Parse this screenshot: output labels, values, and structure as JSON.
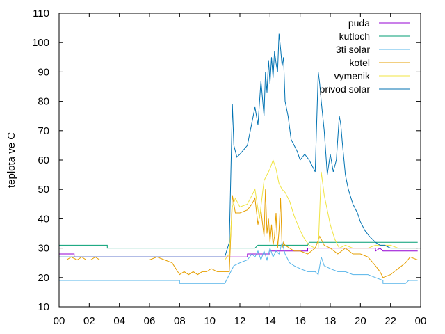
{
  "chart_data": {
    "type": "line",
    "title": "",
    "xlabel": "",
    "ylabel": "teplota ve C",
    "xlim": [
      0,
      24
    ],
    "ylim": [
      10,
      110
    ],
    "x_ticks": [
      "00",
      "02",
      "04",
      "06",
      "08",
      "10",
      "12",
      "14",
      "16",
      "18",
      "20",
      "22",
      "00"
    ],
    "y_ticks": [
      "10",
      "20",
      "30",
      "40",
      "50",
      "60",
      "70",
      "80",
      "90",
      "100",
      "110"
    ],
    "grid": false,
    "legend_position": "top-right",
    "series": [
      {
        "name": "puda",
        "color": "#9400d3",
        "x": [
          0,
          1.0,
          1.0,
          11.0,
          11.0,
          12.5,
          12.5,
          14.0,
          14.0,
          16.5,
          16.5,
          19.0,
          19.0,
          21.0,
          21.0,
          21.3,
          21.5,
          23.8
        ],
        "y": [
          28,
          28,
          27,
          27,
          27,
          27,
          28,
          28,
          29,
          29,
          30,
          30,
          30,
          30,
          29,
          30,
          29,
          29
        ]
      },
      {
        "name": "kutloch",
        "color": "#009e73",
        "x": [
          0,
          3.2,
          3.2,
          11.2,
          12.0,
          13.0,
          13.2,
          16.5,
          16.6,
          21.5,
          21.5,
          23.8
        ],
        "y": [
          31,
          31,
          30,
          30,
          30,
          30,
          31,
          31,
          32,
          32,
          32,
          32
        ]
      },
      {
        "name": "3ti solar",
        "color": "#56b4e9",
        "x": [
          0,
          8.0,
          8.0,
          11.0,
          11.3,
          11.6,
          12.0,
          12.5,
          12.8,
          13.0,
          13.2,
          13.4,
          13.6,
          13.8,
          14.0,
          14.2,
          14.4,
          14.6,
          14.8,
          15.0,
          15.3,
          15.6,
          16.0,
          16.5,
          17.0,
          17.2,
          17.4,
          17.6,
          18.0,
          18.5,
          19.0,
          19.5,
          20.0,
          20.5,
          21.0,
          21.5,
          21.5,
          23.0,
          23.2,
          23.8
        ],
        "y": [
          19,
          19,
          18,
          18,
          21,
          24,
          25,
          26,
          28,
          27,
          29,
          26,
          29,
          26,
          30,
          27,
          29,
          28,
          32,
          28,
          25,
          24,
          23,
          22,
          22,
          21,
          27,
          24,
          23,
          22,
          22,
          21,
          21,
          21,
          20,
          19,
          18,
          18,
          19,
          19
        ]
      },
      {
        "name": "kotel",
        "color": "#e69f00",
        "x": [
          0,
          0.5,
          0.8,
          1.2,
          1.5,
          1.8,
          2.1,
          2.4,
          2.7,
          3.0,
          3.5,
          4.0,
          5.0,
          6.0,
          6.5,
          7.0,
          7.5,
          8.0,
          8.3,
          8.6,
          8.9,
          9.2,
          9.5,
          9.8,
          10.1,
          10.5,
          11.0,
          11.3,
          11.5,
          11.7,
          12.0,
          12.5,
          12.8,
          13.0,
          13.2,
          13.4,
          13.6,
          13.7,
          13.8,
          13.9,
          14.0,
          14.1,
          14.2,
          14.3,
          14.4,
          14.5,
          14.6,
          14.7,
          14.8,
          14.9,
          15.0,
          15.3,
          15.6,
          16.0,
          16.5,
          17.0,
          17.3,
          17.6,
          18.0,
          18.5,
          19.0,
          19.5,
          20.0,
          20.5,
          21.0,
          21.3,
          21.5,
          22.0,
          22.5,
          23.0,
          23.3,
          23.8
        ],
        "y": [
          26,
          26,
          27,
          26,
          27,
          26,
          26,
          27,
          26,
          26,
          26,
          26,
          26,
          26,
          27,
          26,
          25,
          21,
          22,
          21,
          22,
          21,
          22,
          22,
          23,
          22,
          22,
          22,
          48,
          42,
          42,
          43,
          45,
          47,
          38,
          43,
          34,
          50,
          35,
          40,
          32,
          38,
          31,
          34,
          42,
          30,
          36,
          47,
          30,
          32,
          31,
          30,
          29,
          29,
          28,
          30,
          34,
          31,
          30,
          28,
          30,
          28,
          28,
          27,
          24,
          22,
          20,
          21,
          23,
          25,
          27,
          26
        ]
      },
      {
        "name": "vymenik",
        "color": "#f0e442",
        "x": [
          0,
          2.0,
          4.0,
          6.0,
          8.0,
          9.0,
          10.0,
          11.0,
          11.3,
          11.5,
          11.7,
          12.0,
          12.5,
          13.0,
          13.3,
          13.6,
          13.8,
          14.0,
          14.2,
          14.4,
          14.6,
          14.8,
          15.0,
          15.3,
          15.6,
          16.0,
          16.3,
          16.6,
          17.0,
          17.2,
          17.4,
          17.6,
          18.0,
          18.3,
          18.6,
          19.0,
          19.5,
          20.0,
          20.5,
          21.0,
          21.5,
          22.0,
          22.5,
          23.0,
          23.8
        ],
        "y": [
          26,
          26,
          26,
          26,
          26,
          26,
          26,
          26,
          28,
          44,
          47,
          44,
          45,
          50,
          40,
          53,
          55,
          57,
          60,
          57,
          52,
          50,
          49,
          46,
          41,
          36,
          33,
          31,
          30,
          30,
          56,
          48,
          38,
          33,
          30,
          31,
          30,
          30,
          30,
          31,
          31,
          31,
          30,
          30,
          30
        ]
      },
      {
        "name": "privod solar",
        "color": "#0072b2",
        "x": [
          0,
          2.0,
          4.0,
          6.0,
          8.0,
          10.0,
          11.0,
          11.3,
          11.5,
          11.6,
          11.8,
          12.0,
          12.5,
          13.0,
          13.2,
          13.4,
          13.6,
          13.7,
          13.8,
          13.9,
          14.0,
          14.1,
          14.2,
          14.3,
          14.4,
          14.5,
          14.6,
          14.7,
          14.8,
          14.9,
          15.0,
          15.2,
          15.4,
          15.6,
          15.8,
          16.0,
          16.3,
          16.6,
          17.0,
          17.2,
          17.3,
          17.4,
          17.6,
          17.8,
          18.0,
          18.2,
          18.4,
          18.6,
          18.7,
          18.8,
          19.0,
          19.2,
          19.5,
          19.8,
          20.0,
          20.3,
          20.6,
          21.0,
          21.3,
          21.6,
          22.0,
          22.5,
          23.0,
          23.8
        ],
        "y": [
          27,
          27,
          27,
          27,
          27,
          27,
          27,
          32,
          79,
          65,
          61,
          62,
          65,
          78,
          72,
          87,
          75,
          90,
          83,
          94,
          86,
          95,
          88,
          97,
          93,
          90,
          103,
          98,
          92,
          95,
          80,
          75,
          67,
          65,
          63,
          60,
          62,
          60,
          56,
          90,
          86,
          80,
          70,
          55,
          62,
          56,
          60,
          75,
          72,
          66,
          55,
          50,
          45,
          42,
          39,
          36,
          34,
          32,
          31,
          31,
          30,
          30,
          30,
          30
        ]
      }
    ]
  }
}
